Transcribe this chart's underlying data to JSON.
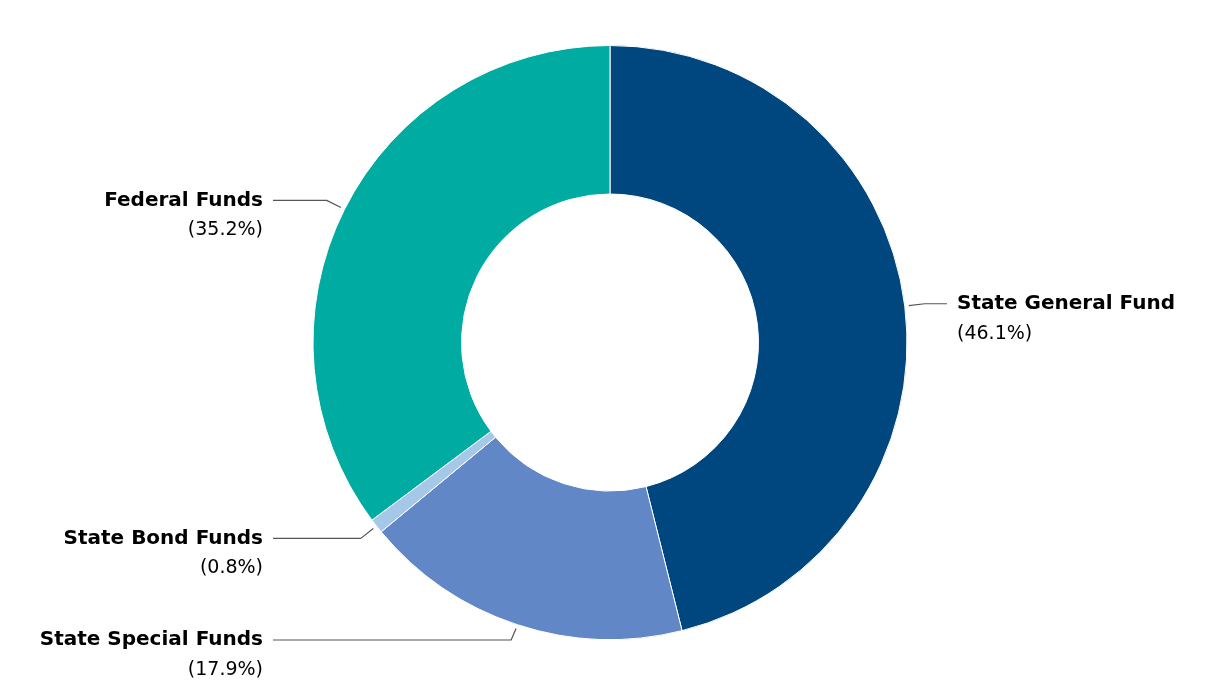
{
  "chart_data": {
    "type": "donut",
    "categories": [
      "State General Fund",
      "State Special Funds",
      "State Bond Funds",
      "Federal Funds"
    ],
    "values": [
      46.1,
      17.9,
      0.8,
      35.2
    ],
    "value_labels": [
      "(46.1%)",
      "(17.9%)",
      "(0.8%)",
      "(35.2%)"
    ],
    "colors": [
      "#00467f",
      "#6287c7",
      "#a6c8e8",
      "#00aba1"
    ],
    "legend": false
  }
}
